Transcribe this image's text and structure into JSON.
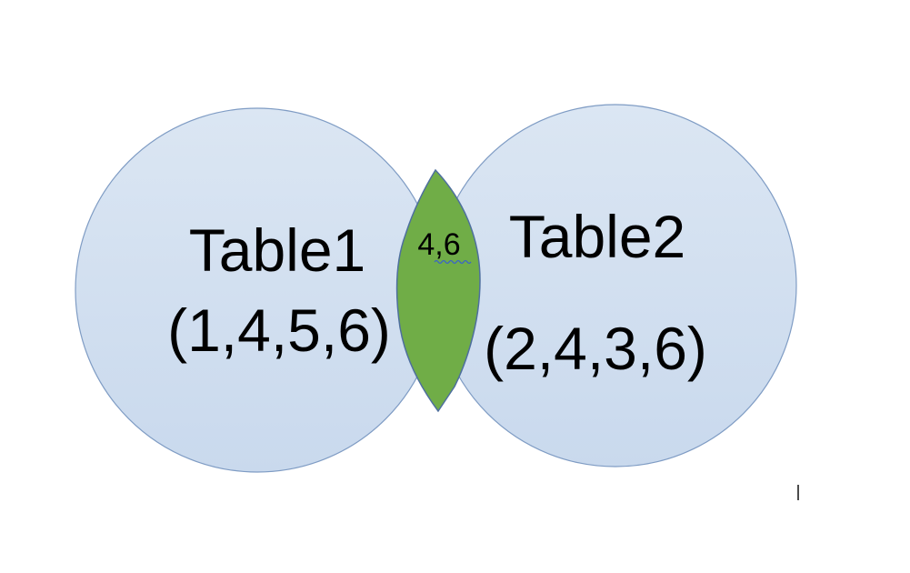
{
  "diagram": {
    "left_set": {
      "title": "Table1",
      "values": "(1,4,5,6)"
    },
    "right_set": {
      "title": "Table2",
      "values": "(2,4,3,6)"
    },
    "overlap": {
      "label": "4,6"
    }
  },
  "colors": {
    "circle_fill": "#d3e0f0",
    "circle_stroke": "#7f9cc4",
    "overlap_fill": "#70ad47",
    "overlap_stroke": "#4e6f9e",
    "spell_underline": "#3a63c8"
  }
}
